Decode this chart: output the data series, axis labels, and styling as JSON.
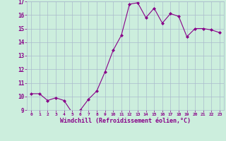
{
  "x": [
    0,
    1,
    2,
    3,
    4,
    5,
    6,
    7,
    8,
    9,
    10,
    11,
    12,
    13,
    14,
    15,
    16,
    17,
    18,
    19,
    20,
    21,
    22,
    23
  ],
  "y": [
    10.2,
    10.2,
    9.7,
    9.9,
    9.7,
    8.8,
    9.0,
    9.8,
    10.4,
    11.8,
    13.4,
    14.5,
    16.8,
    16.9,
    15.8,
    16.5,
    15.4,
    16.1,
    15.9,
    14.4,
    15.0,
    15.0,
    14.9,
    14.7
  ],
  "line_color": "#880088",
  "marker_color": "#880088",
  "bg_color": "#cceedd",
  "grid_color": "#aabbcc",
  "xlabel": "Windchill (Refroidissement éolien,°C)",
  "xlabel_color": "#880088",
  "tick_color": "#880088",
  "ylim": [
    9,
    17
  ],
  "yticks": [
    9,
    10,
    11,
    12,
    13,
    14,
    15,
    16,
    17
  ],
  "xticks": [
    0,
    1,
    2,
    3,
    4,
    5,
    6,
    7,
    8,
    9,
    10,
    11,
    12,
    13,
    14,
    15,
    16,
    17,
    18,
    19,
    20,
    21,
    22,
    23
  ],
  "xtick_labels": [
    "0",
    "1",
    "2",
    "3",
    "4",
    "5",
    "6",
    "7",
    "8",
    "9",
    "10",
    "11",
    "12",
    "13",
    "14",
    "15",
    "16",
    "17",
    "18",
    "19",
    "20",
    "21",
    "22",
    "23"
  ]
}
